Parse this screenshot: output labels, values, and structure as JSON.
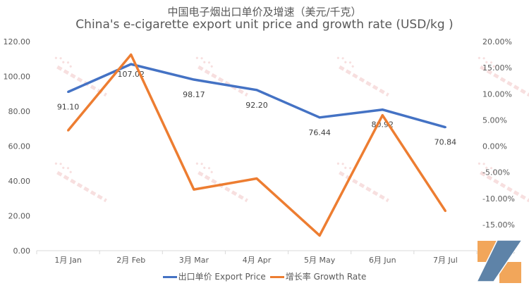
{
  "chart_data": {
    "type": "line",
    "title": "中国电子烟出口单价及增速（美元/千克）",
    "subtitle": "China's e-cigarette export unit price and growth rate (USD/kg )",
    "categories": [
      "1月 Jan",
      "2月 Feb",
      "3月 Mar",
      "4月 Apr",
      "5月 May",
      "6月 Jun",
      "7月 Jul"
    ],
    "y_left": {
      "range": [
        0,
        120
      ],
      "ticks": [
        "0.00",
        "20.00",
        "40.00",
        "60.00",
        "80.00",
        "100.00",
        "120.00"
      ]
    },
    "y_right": {
      "range": [
        -20,
        20
      ],
      "ticks": [
        "-20.00%",
        "-15.00%",
        "-10.00%",
        "-5.00%",
        "0.00%",
        "5.00%",
        "10.00%",
        "15.00%",
        "20.00%"
      ]
    },
    "grid": false,
    "legend_position": "bottom",
    "series": [
      {
        "name": "出口单价 Export Price",
        "axis": "left",
        "color": "#4472C4",
        "values": [
          91.1,
          107.02,
          98.17,
          92.2,
          76.44,
          80.92,
          70.84
        ],
        "labels": [
          "91.10",
          "107.02",
          "98.17",
          "92.20",
          "76.44",
          "80.92",
          "70.84"
        ]
      },
      {
        "name": "增长率 Growth Rate",
        "axis": "right",
        "color": "#ED7D31",
        "values": [
          3.0,
          17.5,
          -8.3,
          -6.2,
          -17.1,
          5.9,
          -12.4
        ]
      }
    ]
  },
  "watermark": "2FIRSTS 两个至上"
}
